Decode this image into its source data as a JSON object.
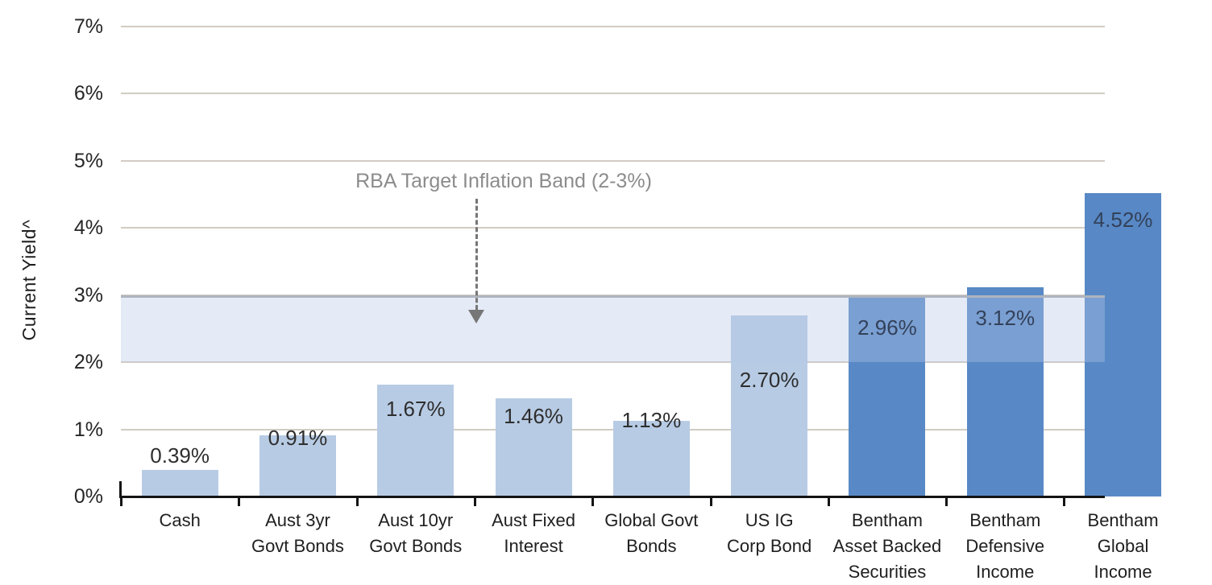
{
  "chart_data": {
    "type": "bar",
    "title": "",
    "ylabel": "Current Yield^",
    "xlabel": "",
    "ylim": [
      0,
      7
    ],
    "ytick_labels": [
      "0%",
      "1%",
      "2%",
      "3%",
      "4%",
      "5%",
      "6%",
      "7%"
    ],
    "grid": true,
    "legend": "none",
    "categories": [
      [
        "Cash"
      ],
      [
        "Aust 3yr",
        "Govt Bonds"
      ],
      [
        "Aust 10yr",
        "Govt Bonds"
      ],
      [
        "Aust Fixed",
        "Interest"
      ],
      [
        "Global Govt",
        "Bonds"
      ],
      [
        "US IG",
        "Corp Bond"
      ],
      [
        "Bentham",
        "Asset Backed",
        "Securities"
      ],
      [
        "Bentham",
        "Defensive",
        "Income"
      ],
      [
        "Bentham",
        "Global",
        "Income"
      ]
    ],
    "values": [
      0.39,
      0.91,
      1.67,
      1.46,
      1.13,
      2.7,
      2.96,
      3.12,
      4.52
    ],
    "bar_labels": [
      "0.39%",
      "0.91%",
      "1.67%",
      "1.46%",
      "1.13%",
      "2.70%",
      "2.96%",
      "3.12%",
      "4.52%"
    ],
    "bar_shades": [
      "light",
      "light",
      "light",
      "light",
      "light",
      "light",
      "dark",
      "dark",
      "dark"
    ],
    "label_dy": [
      -33,
      -12,
      15,
      7,
      -16,
      65,
      22,
      23,
      18
    ],
    "last_category_clipped_by_right_edge": true,
    "band": {
      "from": 2,
      "to": 3,
      "annotation": "RBA Target Inflation Band (2-3%)"
    },
    "colors": {
      "bar_light": "#b7cbe4",
      "bar_dark": "#5889c6",
      "band_fill": "rgba(181,197,231,0.37)",
      "band_edge": "#aeb4bf",
      "gridline": "#d2ccc4",
      "axis": "#141414",
      "tick_text": "#262626",
      "label_on_light": "#2e2e2e",
      "label_on_dark": "#33415a",
      "annotation_text": "#8c8c8c",
      "arrow": "#767676"
    }
  }
}
